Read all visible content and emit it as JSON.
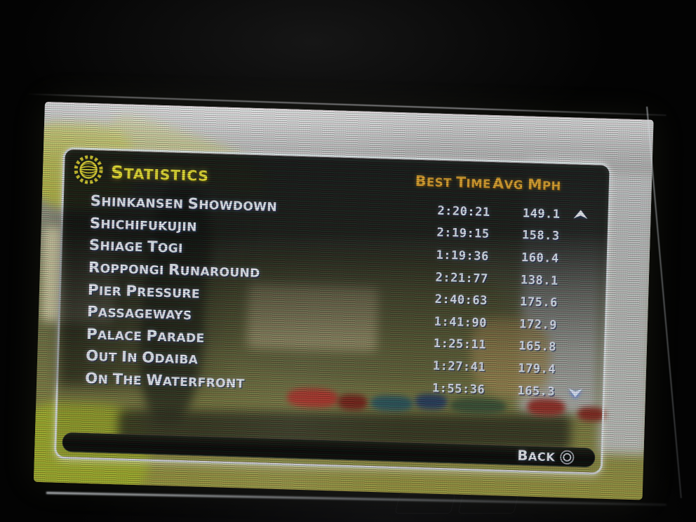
{
  "screen": {
    "title": "STATISTICS",
    "header_icon": "globe-gear-icon",
    "columns": [
      {
        "id": "best_time",
        "label": "BEST TIME"
      },
      {
        "id": "avg_mph",
        "label": "AVG MPH"
      }
    ],
    "rows": [
      {
        "track": "SHINKANSEN SHOWDOWN",
        "best_time": "2:20:21",
        "avg_mph": "149.1"
      },
      {
        "track": "SHICHIFUKUJIN",
        "best_time": "2:19:15",
        "avg_mph": "158.3"
      },
      {
        "track": "SHIAGE TOGI",
        "best_time": "1:19:36",
        "avg_mph": "160.4"
      },
      {
        "track": "ROPPONGI RUNAROUND",
        "best_time": "2:21:77",
        "avg_mph": "138.1"
      },
      {
        "track": "PIER PRESSURE",
        "best_time": "2:40:63",
        "avg_mph": "175.6"
      },
      {
        "track": "PASSAGEWAYS",
        "best_time": "1:41:90",
        "avg_mph": "172.9"
      },
      {
        "track": "PALACE PARADE",
        "best_time": "1:25:11",
        "avg_mph": "165.8"
      },
      {
        "track": "OUT IN ODAIBA",
        "best_time": "1:27:41",
        "avg_mph": "179.4"
      },
      {
        "track": "ON THE WATERFRONT",
        "best_time": "1:55:36",
        "avg_mph": "165.3"
      }
    ],
    "scroll": {
      "up_icon": "chevron-up-icon",
      "down_icon": "chevron-down-icon"
    },
    "footer": {
      "back_label": "BACK",
      "button_icon": "circle-button-icon"
    },
    "colors": {
      "title_yellow": "#e9e433",
      "column_gold": "#dfa52e",
      "row_text": "#eaeff7",
      "panel_border": "#e2e7ea",
      "footer_bar": "#0a0c08"
    }
  }
}
